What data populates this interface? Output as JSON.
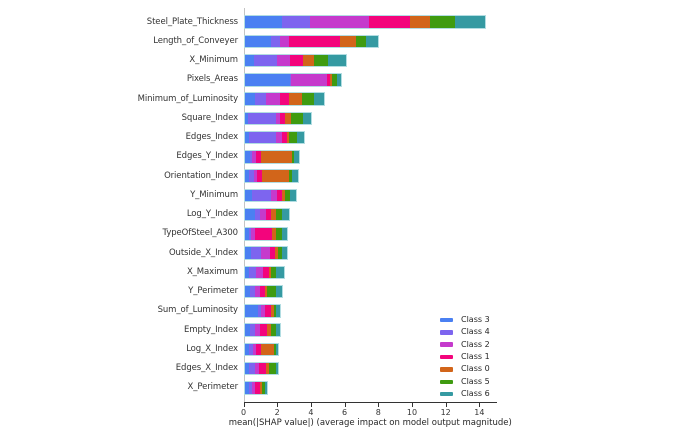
{
  "chart_data": {
    "type": "bar",
    "stacked": true,
    "orientation": "horizontal",
    "title": "",
    "xlabel": "mean(|SHAP value|) (average impact on model output magnitude)",
    "ylabel": "",
    "xlim": [
      0,
      15.05
    ],
    "xticks": [
      0,
      2,
      4,
      6,
      8,
      10,
      12,
      14
    ],
    "x_tick_labels": [
      "0",
      "2",
      "4",
      "6",
      "8",
      "10",
      "12",
      "14"
    ],
    "grid": false,
    "legend_position": "lower right",
    "bar_edge_color": "#b2dde2",
    "categories": [
      "Steel_Plate_Thickness",
      "Length_of_Conveyer",
      "X_Minimum",
      "Pixels_Areas",
      "Minimum_of_Luminosity",
      "Square_Index",
      "Edges_Index",
      "Edges_Y_Index",
      "Orientation_Index",
      "Y_Minimum",
      "Log_Y_Index",
      "TypeOfSteel_A300",
      "Outside_X_Index",
      "X_Maximum",
      "Y_Perimeter",
      "Sum_of_Luminosity",
      "Empty_Index",
      "Log_X_Index",
      "Edges_X_Index",
      "X_Perimeter"
    ],
    "series": [
      {
        "name": "Class 3",
        "color": "#4a80f2",
        "values": [
          2.2,
          1.6,
          0.55,
          2.7,
          0.65,
          0.2,
          0.25,
          0.35,
          0.25,
          0.45,
          0.6,
          0.25,
          0.4,
          0.25,
          0.3,
          0.8,
          0.3,
          0.25,
          0.25,
          0.25
        ]
      },
      {
        "name": "Class 4",
        "color": "#7d65ef",
        "values": [
          1.7,
          0.5,
          1.4,
          0.05,
          0.6,
          1.65,
          1.6,
          0.1,
          0.3,
          1.1,
          0.3,
          0.15,
          0.6,
          0.45,
          0.3,
          0.2,
          0.35,
          0.25,
          0.35,
          0.2
        ]
      },
      {
        "name": "Class 2",
        "color": "#c53acc",
        "values": [
          3.5,
          0.55,
          0.75,
          2.15,
          0.85,
          0.25,
          0.35,
          0.25,
          0.2,
          0.35,
          0.35,
          0.2,
          0.5,
          0.4,
          0.3,
          0.2,
          0.25,
          0.2,
          0.25,
          0.2
        ]
      },
      {
        "name": "Class 1",
        "color": "#f3047c",
        "values": [
          2.4,
          3.0,
          0.8,
          0.15,
          0.55,
          0.3,
          0.3,
          0.3,
          0.3,
          0.3,
          0.35,
          1.05,
          0.3,
          0.35,
          0.3,
          0.35,
          0.45,
          0.3,
          0.4,
          0.25
        ]
      },
      {
        "name": "Class 0",
        "color": "#d2651a",
        "values": [
          1.2,
          0.95,
          0.65,
          0.15,
          0.75,
          0.35,
          0.15,
          1.8,
          1.6,
          0.2,
          0.3,
          0.25,
          0.2,
          0.15,
          0.15,
          0.2,
          0.25,
          0.75,
          0.2,
          0.15
        ]
      },
      {
        "name": "Class 5",
        "color": "#3f9b10",
        "values": [
          1.5,
          0.6,
          0.8,
          0.3,
          0.75,
          0.7,
          0.45,
          0.15,
          0.15,
          0.3,
          0.3,
          0.35,
          0.25,
          0.25,
          0.55,
          0.15,
          0.25,
          0.1,
          0.4,
          0.15
        ]
      },
      {
        "name": "Class 6",
        "color": "#359aa2",
        "values": [
          1.8,
          0.7,
          1.05,
          0.25,
          0.55,
          0.5,
          0.45,
          0.3,
          0.35,
          0.35,
          0.45,
          0.3,
          0.25,
          0.5,
          0.3,
          0.2,
          0.25,
          0.15,
          0.15,
          0.15
        ]
      }
    ],
    "legend_entries": [
      "Class 3",
      "Class 4",
      "Class 2",
      "Class 1",
      "Class 0",
      "Class 5",
      "Class 6"
    ]
  }
}
